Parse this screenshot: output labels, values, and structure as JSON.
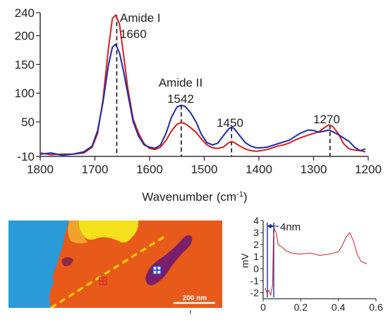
{
  "chart_data": [
    {
      "id": "spectrum",
      "type": "line",
      "title": "",
      "xlabel": "Wavenumber",
      "xlabel_unit": "cm",
      "xlabel_unit_sup": "-1",
      "ylabel": "",
      "xlim": [
        1800,
        1200
      ],
      "ylim": [
        -10,
        240
      ],
      "x_reversed": true,
      "grid": false,
      "legend": "none",
      "x_ticks": [
        1800,
        1700,
        1600,
        1500,
        1400,
        1300,
        1200
      ],
      "y_ticks": [
        -10,
        50,
        100,
        150,
        200,
        240
      ],
      "y_tick_labels": [
        "-10",
        "50",
        "100",
        "150",
        "200",
        "240"
      ],
      "series": [
        {
          "color": "#d62020",
          "points": [
            [
              1800,
              -4
            ],
            [
              1780,
              -7
            ],
            [
              1760,
              -6
            ],
            [
              1740,
              -6
            ],
            [
              1720,
              -4
            ],
            [
              1705,
              6
            ],
            [
              1695,
              30
            ],
            [
              1685,
              90
            ],
            [
              1675,
              180
            ],
            [
              1668,
              230
            ],
            [
              1662,
              236
            ],
            [
              1655,
              220
            ],
            [
              1648,
              170
            ],
            [
              1640,
              110
            ],
            [
              1630,
              55
            ],
            [
              1620,
              30
            ],
            [
              1610,
              12
            ],
            [
              1600,
              4
            ],
            [
              1590,
              2
            ],
            [
              1580,
              6
            ],
            [
              1570,
              18
            ],
            [
              1560,
              34
            ],
            [
              1550,
              46
            ],
            [
              1542,
              49
            ],
            [
              1535,
              47
            ],
            [
              1525,
              40
            ],
            [
              1515,
              32
            ],
            [
              1505,
              20
            ],
            [
              1495,
              10
            ],
            [
              1485,
              5
            ],
            [
              1475,
              4
            ],
            [
              1465,
              6
            ],
            [
              1455,
              14
            ],
            [
              1450,
              16
            ],
            [
              1445,
              14
            ],
            [
              1435,
              8
            ],
            [
              1425,
              3
            ],
            [
              1415,
              0
            ],
            [
              1405,
              -1
            ],
            [
              1395,
              0
            ],
            [
              1385,
              2
            ],
            [
              1375,
              5
            ],
            [
              1365,
              8
            ],
            [
              1355,
              10
            ],
            [
              1345,
              13
            ],
            [
              1335,
              18
            ],
            [
              1325,
              22
            ],
            [
              1310,
              27
            ],
            [
              1300,
              30
            ],
            [
              1290,
              33
            ],
            [
              1280,
              40
            ],
            [
              1272,
              45
            ],
            [
              1265,
              42
            ],
            [
              1255,
              30
            ],
            [
              1245,
              12
            ],
            [
              1235,
              3
            ],
            [
              1225,
              1
            ],
            [
              1215,
              0
            ],
            [
              1205,
              -2
            ]
          ]
        },
        {
          "color": "#1c2ca8",
          "points": [
            [
              1800,
              -6
            ],
            [
              1780,
              -4
            ],
            [
              1760,
              -8
            ],
            [
              1740,
              -6
            ],
            [
              1720,
              -2
            ],
            [
              1705,
              8
            ],
            [
              1695,
              35
            ],
            [
              1685,
              85
            ],
            [
              1675,
              150
            ],
            [
              1668,
              180
            ],
            [
              1662,
              185
            ],
            [
              1655,
              170
            ],
            [
              1648,
              140
            ],
            [
              1640,
              100
            ],
            [
              1630,
              50
            ],
            [
              1620,
              25
            ],
            [
              1610,
              10
            ],
            [
              1600,
              6
            ],
            [
              1590,
              4
            ],
            [
              1580,
              10
            ],
            [
              1570,
              30
            ],
            [
              1560,
              58
            ],
            [
              1550,
              76
            ],
            [
              1542,
              79
            ],
            [
              1535,
              77
            ],
            [
              1525,
              66
            ],
            [
              1515,
              50
            ],
            [
              1505,
              28
            ],
            [
              1495,
              14
            ],
            [
              1485,
              10
            ],
            [
              1475,
              13
            ],
            [
              1465,
              26
            ],
            [
              1455,
              38
            ],
            [
              1450,
              41
            ],
            [
              1445,
              38
            ],
            [
              1435,
              26
            ],
            [
              1425,
              14
            ],
            [
              1415,
              8
            ],
            [
              1405,
              5
            ],
            [
              1395,
              5
            ],
            [
              1385,
              6
            ],
            [
              1375,
              9
            ],
            [
              1365,
              12
            ],
            [
              1355,
              15
            ],
            [
              1345,
              18
            ],
            [
              1335,
              24
            ],
            [
              1325,
              30
            ],
            [
              1310,
              36
            ],
            [
              1300,
              35
            ],
            [
              1290,
              32
            ],
            [
              1280,
              34
            ],
            [
              1272,
              36
            ],
            [
              1265,
              33
            ],
            [
              1255,
              28
            ],
            [
              1245,
              22
            ],
            [
              1235,
              16
            ],
            [
              1225,
              6
            ],
            [
              1215,
              0
            ],
            [
              1205,
              3
            ]
          ]
        }
      ],
      "annotations": [
        {
          "lines": [
            "Amide I",
            "1660"
          ],
          "x": 1660
        },
        {
          "lines": [
            "Amide II",
            "1542"
          ],
          "x": 1542
        },
        {
          "lines": [
            "1450"
          ],
          "x": 1450
        },
        {
          "lines": [
            "1270"
          ],
          "x": 1270
        }
      ]
    },
    {
      "id": "afm-image",
      "type": "image",
      "scale_bar_label": "200 nm",
      "markers": [
        {
          "color": "#e03030",
          "symbol": "+"
        },
        {
          "color": "#2848d8",
          "symbol": "+"
        }
      ],
      "line_color": "#ffd700"
    },
    {
      "id": "height-profile",
      "type": "line",
      "title": "",
      "xlabel": "",
      "ylabel": "mV",
      "xlim": [
        0,
        0.6
      ],
      "ylim": [
        -2.5,
        4
      ],
      "x_ticks": [
        0,
        0.2,
        0.4,
        0.6
      ],
      "x_tick_labels": [
        "0",
        "0.2",
        "0.4",
        "0.6"
      ],
      "y_ticks": [
        -2,
        -1,
        0,
        1,
        2,
        3,
        4
      ],
      "y_tick_labels": [
        "-2",
        "-1",
        "0",
        "1",
        "2",
        "3",
        "4"
      ],
      "annotation": "4nm",
      "series": [
        {
          "color": "#d62020",
          "points": [
            [
              0.01,
              -1.6
            ],
            [
              0.02,
              -2.0
            ],
            [
              0.03,
              -1.8
            ],
            [
              0.04,
              -2.2
            ],
            [
              0.05,
              -1.4
            ],
            [
              0.055,
              2.6
            ],
            [
              0.06,
              3.3
            ],
            [
              0.07,
              3.0
            ],
            [
              0.08,
              2.0
            ],
            [
              0.1,
              1.8
            ],
            [
              0.12,
              1.5
            ],
            [
              0.15,
              1.3
            ],
            [
              0.2,
              1.2
            ],
            [
              0.25,
              1.3
            ],
            [
              0.3,
              1.1
            ],
            [
              0.35,
              1.2
            ],
            [
              0.4,
              1.4
            ],
            [
              0.42,
              1.9
            ],
            [
              0.44,
              2.6
            ],
            [
              0.46,
              3.0
            ],
            [
              0.48,
              2.3
            ],
            [
              0.5,
              1.2
            ],
            [
              0.52,
              0.6
            ],
            [
              0.55,
              0.4
            ]
          ]
        }
      ]
    }
  ]
}
